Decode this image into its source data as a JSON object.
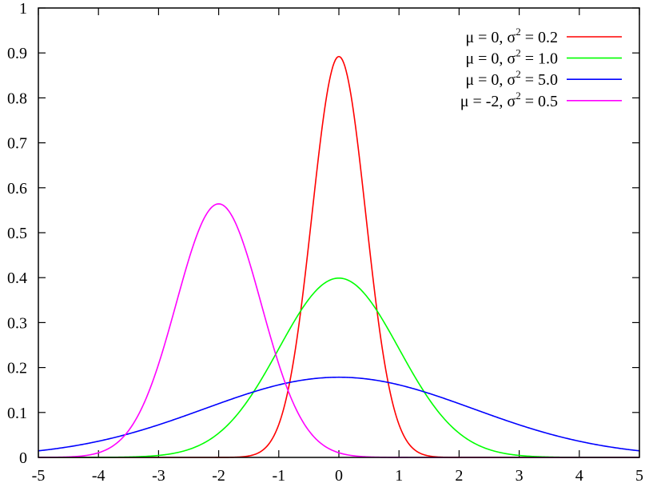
{
  "chart_data": {
    "type": "line",
    "xlim": [
      -5,
      5
    ],
    "ylim": [
      0,
      1
    ],
    "x_ticks": [
      "-5",
      "-4",
      "-3",
      "-2",
      "-1",
      "0",
      "1",
      "2",
      "3",
      "4",
      "5"
    ],
    "y_ticks": [
      "0",
      "0.1",
      "0.2",
      "0.3",
      "0.4",
      "0.5",
      "0.6",
      "0.7",
      "0.8",
      "0.9",
      "1"
    ],
    "grid": false,
    "legend_position": "top-right",
    "series": [
      {
        "label_prefix": "μ =  0, σ",
        "label_exp": "2",
        "label_suffix": " = 0.2",
        "mu": 0,
        "variance": 0.2,
        "color": "#ff0000",
        "peak": 0.892
      },
      {
        "label_prefix": "μ =  0, σ",
        "label_exp": "2",
        "label_suffix": " = 1.0",
        "mu": 0,
        "variance": 1.0,
        "color": "#00ff00",
        "peak": 0.399
      },
      {
        "label_prefix": "μ =  0, σ",
        "label_exp": "2",
        "label_suffix": " = 5.0",
        "mu": 0,
        "variance": 5.0,
        "color": "#0000ff",
        "peak": 0.178
      },
      {
        "label_prefix": "μ = -2, σ",
        "label_exp": "2",
        "label_suffix": " = 0.5",
        "mu": -2,
        "variance": 0.5,
        "color": "#ff00ff",
        "peak": 0.564
      }
    ]
  }
}
